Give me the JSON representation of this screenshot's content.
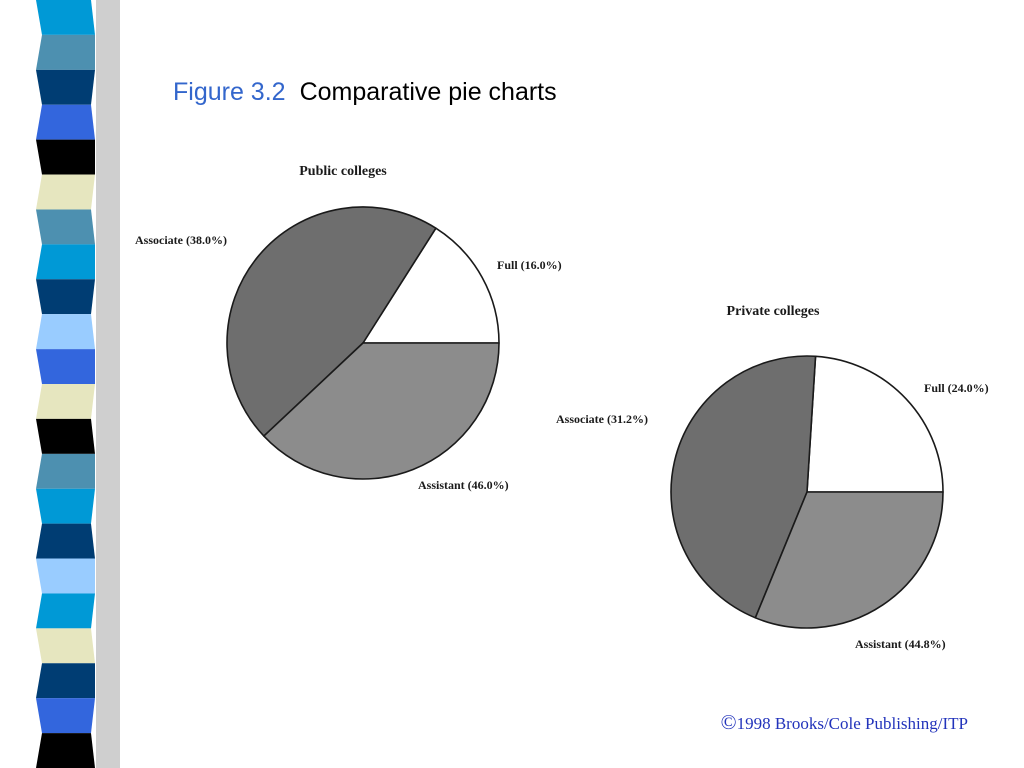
{
  "slide": {
    "figure_label": "Figure 3.2",
    "title": "Comparative pie charts",
    "copyright_symbol": "©",
    "copyright_text": "1998 Brooks/Cole Publishing/ITP"
  },
  "decoration": {
    "stripe_colors": [
      "#0099d6",
      "#4d90b0",
      "#003d73",
      "#3366dd",
      "#000000",
      "#e6e6bf",
      "#4d90b0",
      "#0099d6",
      "#003d73",
      "#99ccff",
      "#3366dd",
      "#e6e6bf",
      "#000000",
      "#4d90b0",
      "#0099d6",
      "#003d73",
      "#99ccff",
      "#0099d6",
      "#e6e6bf",
      "#003d73",
      "#3366dd",
      "#000000"
    ]
  },
  "chart_data": [
    {
      "type": "pie",
      "title": "Public colleges",
      "slices": [
        {
          "label": "Full (16.0%)",
          "value": 16.0,
          "color": "#ffffff"
        },
        {
          "label": "Assistant (46.0%)",
          "value": 46.0,
          "color": "#6e6e6e"
        },
        {
          "label": "Associate (38.0%)",
          "value": 38.0,
          "color": "#8c8c8c"
        }
      ]
    },
    {
      "type": "pie",
      "title": "Private colleges",
      "slices": [
        {
          "label": "Full (24.0%)",
          "value": 24.0,
          "color": "#ffffff"
        },
        {
          "label": "Assistant (44.8%)",
          "value": 44.8,
          "color": "#6e6e6e"
        },
        {
          "label": "Associate (31.2%)",
          "value": 31.2,
          "color": "#8c8c8c"
        }
      ]
    }
  ]
}
